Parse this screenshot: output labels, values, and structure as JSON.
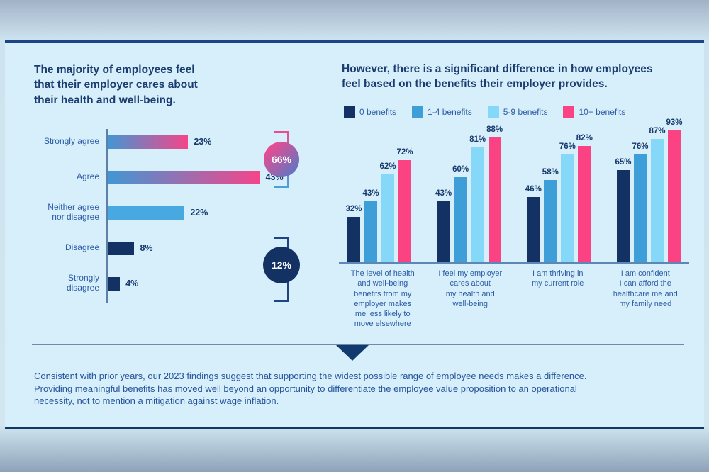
{
  "colors": {
    "navy": "#133263",
    "blue": "#3e9ed8",
    "light_blue": "#85d8f8",
    "pink": "#fb4383",
    "mid_blue": "#47a9e0",
    "gradient_start": "#3e98d5",
    "gradient_end": "#f5458a",
    "headline_text": "#1b3c70",
    "label_text": "#2d5ca6",
    "card_background": "#d6effa"
  },
  "left_section": {
    "title": "The majority of employees feel\nthat their employer cares about\ntheir health and well-being."
  },
  "right_section": {
    "title": "However, there is a significant difference in how employees\nfeel based on the benefits their employer provides."
  },
  "chart_data": [
    {
      "type": "bar",
      "orientation": "horizontal",
      "title": "The majority of employees feel that their employer cares about their health and well-being.",
      "categories": [
        "Strongly agree",
        "Agree",
        "Neither agree\nnor disagree",
        "Disagree",
        "Strongly disagree"
      ],
      "values": [
        23,
        43,
        22,
        8,
        4
      ],
      "value_labels": [
        "23%",
        "43%",
        "22%",
        "8%",
        "4%"
      ],
      "bar_styles": [
        "gradient",
        "gradient",
        "mid",
        "navy",
        "navy"
      ],
      "xlim": [
        0,
        50
      ],
      "grid": false,
      "annotations": [
        {
          "label": "66%",
          "meaning": "Strongly agree + Agree",
          "style": "gradient"
        },
        {
          "label": "12%",
          "meaning": "Disagree + Strongly disagree",
          "style": "navy"
        }
      ]
    },
    {
      "type": "bar",
      "orientation": "vertical-grouped",
      "title": "However, there is a significant difference in how employees feel based on the benefits their employer provides.",
      "categories": [
        "The level of health\nand well-being\nbenefits from my\nemployer makes\nme less likely to\nmove elsewhere",
        "I feel my employer\ncares about\nmy health and\nwell-being",
        "I am thriving in\nmy current role",
        "I am confident\nI can afford the\nhealthcare me and\nmy family need"
      ],
      "series": [
        {
          "name": "0 benefits",
          "color": "navy",
          "values": [
            32,
            43,
            46,
            65
          ]
        },
        {
          "name": "1-4 benefits",
          "color": "blue",
          "values": [
            43,
            60,
            58,
            76
          ]
        },
        {
          "name": "5-9 benefits",
          "color": "light_blue",
          "values": [
            62,
            81,
            76,
            87
          ]
        },
        {
          "name": "10+ benefits",
          "color": "pink",
          "values": [
            72,
            88,
            82,
            93
          ]
        }
      ],
      "ylim": [
        0,
        100
      ],
      "grid": false,
      "legend_position": "top"
    }
  ],
  "footer": {
    "text": "Consistent with prior years, our 2023 findings suggest that supporting the widest possible range of employee needs makes a difference.\nProviding meaningful benefits has moved well beyond an opportunity to differentiate the employee value proposition to an operational\nnecessity, not to mention a mitigation against wage inflation."
  }
}
